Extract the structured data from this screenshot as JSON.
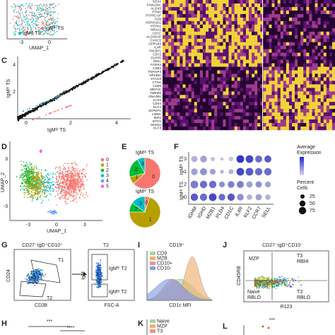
{
  "panel_a": {
    "x_label": "UMAP_1",
    "x_ticks": [
      "-3",
      "0"
    ],
    "legend": [
      "IgMʰⁱ TS",
      "IgMˡᵒ TS"
    ]
  },
  "panel_b": {
    "genes": [
      "SOX4",
      "FAM129C",
      "ALOX5",
      "PTMA",
      "PTPRCAP",
      "CD9",
      "HERPUD1",
      "PTPN1",
      "NR4A1",
      "CD1C",
      "ALOX5AP",
      "CXXC5",
      "GPR183",
      "IL4R",
      "PIK3IP1",
      "CD72",
      "PLPP5",
      "SELL",
      "FCER2",
      "CD83",
      "TNFAIP3",
      "NFKBIA",
      "STAG3",
      "CTSH",
      "CD69",
      "MEF2C",
      "TMEM2",
      "DNAJB1",
      "KLF6",
      "CD44",
      "KLF2",
      "SCPEP1",
      "LMNA",
      "IER2",
      "BTG1",
      "SESN1",
      "KLF4"
    ]
  },
  "panel_c": {
    "letter": "C",
    "y_label": "IgMʰⁱ TS",
    "x_label": "IgMˡᵒ TS",
    "y_ticks": [
      "2",
      "4"
    ],
    "x_ticks": [
      "0",
      "2",
      "4"
    ]
  },
  "panel_d": {
    "letter": "D",
    "y_label": "UMAP_2",
    "x_label": "UMAP_1",
    "x_ticks": [
      "-3",
      "0",
      "3"
    ],
    "y_ticks": [
      "3",
      "0",
      "-3"
    ],
    "clusters": [
      {
        "name": "0",
        "color": "#f8766d"
      },
      {
        "name": "1",
        "color": "#b79f00"
      },
      {
        "name": "2",
        "color": "#00ba38"
      },
      {
        "name": "3",
        "color": "#00bfc4"
      },
      {
        "name": "4",
        "color": "#619cff"
      },
      {
        "name": "5",
        "color": "#f564e3"
      }
    ]
  },
  "panel_e": {
    "letter": "E",
    "pies": [
      {
        "title": "IgMˡᵒ TS",
        "title_color": "#e8544a",
        "labels": [
          "0",
          "1",
          "2",
          "3"
        ],
        "values": [
          63,
          8,
          21,
          8
        ]
      },
      {
        "title": "IgMʰⁱ TS",
        "title_color": "#1fb5c8",
        "labels": [
          "0",
          "1",
          "2",
          "3"
        ],
        "values": [
          5,
          70,
          10,
          15
        ]
      }
    ]
  },
  "panel_f": {
    "letter": "F",
    "genes": [
      "IGHM",
      "IGHD",
      "MZB1",
      "PLD4",
      "CD1C",
      "IL4R",
      "KLF2",
      "CCR7",
      "SELL"
    ],
    "rows": [
      "3",
      "1",
      "2",
      "0"
    ],
    "group_hi": "IgMʰⁱ TS",
    "group_lo": "IgMˡᵒ TS",
    "color_title": "Average\nExpression",
    "size_title": "Percent\nCells",
    "size_ticks": [
      25,
      50,
      75
    ],
    "percent": [
      [
        40,
        45,
        20,
        10,
        20,
        60,
        60,
        50,
        50
      ],
      [
        45,
        50,
        35,
        15,
        25,
        60,
        60,
        55,
        55
      ],
      [
        60,
        55,
        55,
        35,
        45,
        50,
        40,
        40,
        35
      ],
      [
        55,
        55,
        60,
        45,
        55,
        45,
        30,
        40,
        30
      ]
    ],
    "expression": [
      [
        0.2,
        0.3,
        0.1,
        0.1,
        0.1,
        0.9,
        0.8,
        0.6,
        0.7
      ],
      [
        0.3,
        0.4,
        0.3,
        0.2,
        0.2,
        0.8,
        0.7,
        0.6,
        0.6
      ],
      [
        0.5,
        0.6,
        0.6,
        0.4,
        0.5,
        0.5,
        0.3,
        0.4,
        0.3
      ],
      [
        0.7,
        0.6,
        0.8,
        0.6,
        0.7,
        0.4,
        0.2,
        0.3,
        0.2
      ]
    ]
  },
  "panel_g": {
    "letter": "G",
    "title": "CD27⁻IgD⁺CD10⁺",
    "gate1": "T1",
    "gate2": "T2",
    "y_label": "CD24",
    "x_label": "CD38",
    "title2": "T2",
    "y_label2": "IgM",
    "x_label2": "FSC-A",
    "gate_hi": "IgMʰⁱ T2",
    "gate_lo": "IgMˡᵒ T2"
  },
  "panel_i": {
    "letter": "I",
    "title": "CD19⁺",
    "legend": [
      "CD9",
      "MZB",
      "CD10+",
      "CD10-"
    ],
    "x_label": "CD1c MFI"
  },
  "panel_j": {
    "letter": "J",
    "title": "CD27⁻IgD⁺CD10⁻",
    "gate_mzp": "MZP",
    "gate_t3hi": "T3\nRBHI",
    "gate_naive": "Naive\nRBLO",
    "gate_t3lo": "T3\nRBLO",
    "y_label": "CD45RB",
    "x_label": "R123"
  },
  "panel_h": {
    "letter": "H",
    "sig1": "***",
    "sig2": "****"
  },
  "panel_k": {
    "letter": "K",
    "legend": [
      "Naive",
      "MZP",
      "T3"
    ]
  },
  "panel_l": {
    "letter": "L",
    "sig": "***"
  }
}
